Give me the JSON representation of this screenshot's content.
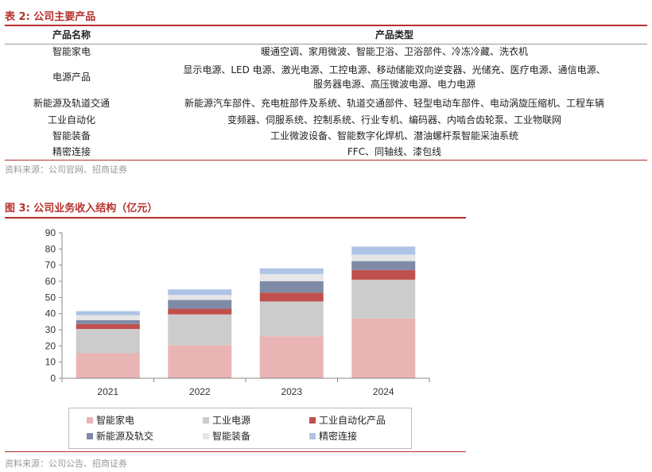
{
  "table": {
    "title": "表 2:  公司主要产品",
    "headers": [
      "产品名称",
      "产品类型"
    ],
    "rows": [
      {
        "name": "智能家电",
        "types": [
          "暖通空调、家用微波、智能卫浴、卫浴部件、冷冻冷藏、洗衣机"
        ]
      },
      {
        "name": "电源产品",
        "types": [
          "显示电源、LED 电源、激光电源、工控电源、移动储能双向逆变器、光储充、医疗电源、通信电源、",
          "服务器电源、高压微波电源、电力电源"
        ]
      },
      {
        "name": "新能源及轨道交通",
        "types": [
          "新能源汽车部件、充电桩部件及系统、轨道交通部件、轻型电动车部件、电动涡旋压缩机、工程车辆"
        ]
      },
      {
        "name": "工业自动化",
        "types": [
          "变频器、伺服系统、控制系统、行业专机、编码器、内啮合齿轮泵、工业物联网"
        ]
      },
      {
        "name": "智能装备",
        "types": [
          "工业微波设备、智能数字化焊机、潜油螺杆泵智能采油系统"
        ]
      },
      {
        "name": "精密连接",
        "types": [
          "FFC、同轴线、漆包线"
        ]
      }
    ],
    "source": "资料来源：公司官网、招商证券"
  },
  "figure": {
    "title": "图 3:  公司业务收入结构（亿元）",
    "source": "资料来源：公司公告、招商证券"
  },
  "chart_data": {
    "type": "bar",
    "stacked": true,
    "categories": [
      "2021",
      "2022",
      "2023",
      "2024"
    ],
    "ylim": [
      0,
      90
    ],
    "yticks": [
      0,
      10,
      20,
      30,
      40,
      50,
      60,
      70,
      80,
      90
    ],
    "grid": false,
    "legend_position": "bottom",
    "series": [
      {
        "name": "智能家电",
        "color": "#e8b4b4",
        "values": [
          15.5,
          20.5,
          26,
          37
        ]
      },
      {
        "name": "工业电源",
        "color": "#cccccc",
        "values": [
          15,
          19,
          21.5,
          24
        ]
      },
      {
        "name": "工业自动化产品",
        "color": "#c0504d",
        "values": [
          3,
          3.5,
          5.5,
          6
        ]
      },
      {
        "name": "新能源及轨交",
        "color": "#7f8ba6",
        "values": [
          2.5,
          5.5,
          7,
          5.5
        ]
      },
      {
        "name": "智能装备",
        "color": "#e6e6e6",
        "values": [
          3,
          3,
          4.5,
          4
        ]
      },
      {
        "name": "精密连接",
        "color": "#aec3e6",
        "values": [
          2.5,
          3.5,
          3.5,
          5
        ]
      }
    ]
  }
}
